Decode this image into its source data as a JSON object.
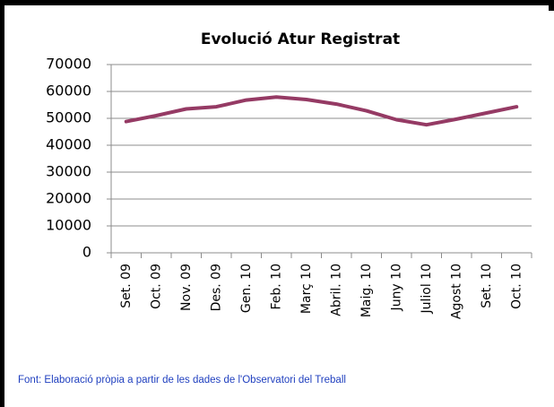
{
  "chart_data": {
    "type": "line",
    "title": "Evolució Atur Registrat",
    "categories": [
      "Set. 09",
      "Oct. 09",
      "Nov. 09",
      "Des. 09",
      "Gen. 10",
      "Feb. 10",
      "Març 10",
      "Abril. 10",
      "Maig. 10",
      "Juny 10",
      "Juliol 10",
      "Agost 10",
      "Set. 10",
      "Oct. 10"
    ],
    "series": [
      {
        "name": "Atur Registrat",
        "color": "#953a64",
        "values": [
          48800,
          51000,
          53500,
          54300,
          56800,
          57900,
          57000,
          55300,
          52800,
          49500,
          47600,
          49700,
          52000,
          54300
        ]
      }
    ],
    "ylim": [
      0,
      70000
    ],
    "yticks": [
      0,
      10000,
      20000,
      30000,
      40000,
      50000,
      60000,
      70000
    ],
    "grid": true,
    "source": "Font: Elaboració pròpia a partir de les dades de l'Observatori del Treball"
  }
}
